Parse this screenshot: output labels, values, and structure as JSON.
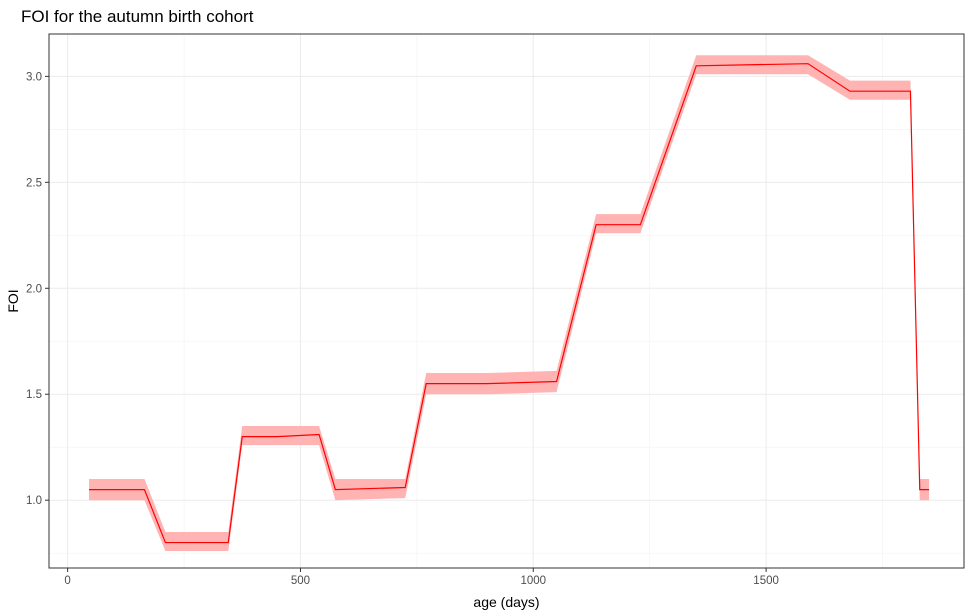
{
  "chart_data": {
    "type": "line",
    "title": "FOI for the autumn birth cohort",
    "xlabel": "age (days)",
    "ylabel": "FOI",
    "xlim": [
      -40,
      1925
    ],
    "ylim": [
      0.68,
      3.2
    ],
    "x_ticks": [
      0,
      500,
      1000,
      1500
    ],
    "y_ticks": [
      1.0,
      1.5,
      2.0,
      2.5,
      3.0
    ],
    "x_tick_labels": [
      "0",
      "500",
      "1000",
      "1500"
    ],
    "y_tick_labels": [
      "1.0",
      "1.5",
      "2.0",
      "2.5",
      "3.0"
    ],
    "grid": true,
    "line_color": "#ff0000",
    "band_color": "#ffb3b3",
    "series": [
      {
        "x": [
          46,
          165,
          210,
          345,
          375,
          450,
          540,
          575,
          725,
          770,
          900,
          1050,
          1135,
          1230,
          1350,
          1590,
          1680,
          1810,
          1830,
          1850
        ],
        "y": [
          1.05,
          1.05,
          0.8,
          0.8,
          1.3,
          1.3,
          1.31,
          1.05,
          1.06,
          1.55,
          1.55,
          1.56,
          2.3,
          2.3,
          3.05,
          3.06,
          2.93,
          2.93,
          1.05,
          1.05
        ],
        "lower": [
          1.0,
          1.0,
          0.76,
          0.76,
          1.26,
          1.26,
          1.26,
          1.0,
          1.01,
          1.5,
          1.5,
          1.51,
          2.26,
          2.26,
          3.01,
          3.01,
          2.89,
          2.89,
          1.0,
          1.0
        ],
        "upper": [
          1.1,
          1.1,
          0.85,
          0.85,
          1.35,
          1.35,
          1.35,
          1.1,
          1.1,
          1.6,
          1.6,
          1.61,
          2.35,
          2.35,
          3.1,
          3.1,
          2.98,
          2.98,
          1.1,
          1.1
        ]
      }
    ]
  }
}
